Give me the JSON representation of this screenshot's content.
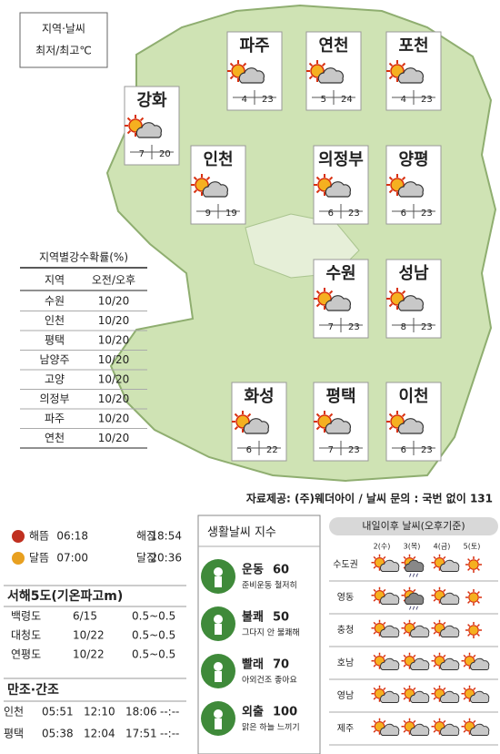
{
  "legend": {
    "line1": "지역·날씨",
    "line2": "최저/최고℃"
  },
  "cities": [
    {
      "name": "파주",
      "low": 4,
      "high": 23
    },
    {
      "name": "연천",
      "low": 5,
      "high": 24
    },
    {
      "name": "포천",
      "low": 4,
      "high": 23
    },
    {
      "name": "강화",
      "low": 7,
      "high": 20
    },
    {
      "name": "인천",
      "low": 9,
      "high": 19
    },
    {
      "name": "의정부",
      "low": 6,
      "high": 23
    },
    {
      "name": "양평",
      "low": 6,
      "high": 23
    },
    {
      "name": "수원",
      "low": 7,
      "high": 23
    },
    {
      "name": "성남",
      "low": 8,
      "high": 23
    },
    {
      "name": "화성",
      "low": 6,
      "high": 22
    },
    {
      "name": "평택",
      "low": 7,
      "high": 23
    },
    {
      "name": "이천",
      "low": 6,
      "high": 23
    }
  ],
  "rain_table": {
    "title": "지역별강수확률(%)",
    "header": [
      "지역",
      "오전/오후"
    ],
    "rows": [
      [
        "수원",
        "10/20"
      ],
      [
        "인천",
        "10/20"
      ],
      [
        "평택",
        "10/20"
      ],
      [
        "남양주",
        "10/20"
      ],
      [
        "고양",
        "10/20"
      ],
      [
        "의정부",
        "10/20"
      ],
      [
        "파주",
        "10/20"
      ],
      [
        "연천",
        "10/20"
      ]
    ]
  },
  "source": "자료제공: (주)웨더아이 / 날씨 문의 : 국번 없이 131",
  "sun_moon": [
    [
      "해뜸",
      "06:18",
      "해짐",
      "18:54"
    ],
    [
      "달뜸",
      "07:00",
      "달짐",
      "20:36"
    ]
  ],
  "sea": {
    "title": "서해5도(기온파고m)",
    "rows": [
      [
        "백령도",
        "6/15",
        "0.5~0.5"
      ],
      [
        "대청도",
        "10/22",
        "0.5~0.5"
      ],
      [
        "연평도",
        "10/22",
        "0.5~0.5"
      ]
    ]
  },
  "tide": {
    "title": "만조·간조",
    "rows": [
      [
        "인천",
        "05:51",
        "12:10",
        "18:06",
        "--:--"
      ],
      [
        "평택",
        "05:38",
        "12:04",
        "17:51",
        "--:--"
      ]
    ]
  },
  "life_index": {
    "title": "생활날씨 지수",
    "items": [
      {
        "name": "운동",
        "value": 60,
        "note": "준비운동 철저히"
      },
      {
        "name": "불쾌",
        "value": 50,
        "note": "그다지 안 불쾌해"
      },
      {
        "name": "빨래",
        "value": 70,
        "note": "아외건조 좋아요"
      },
      {
        "name": "외출",
        "value": 100,
        "note": "맑은 하늘 느끼기"
      }
    ]
  },
  "forecast": {
    "title": "내일이후 날씨(오후기준)",
    "days": [
      "2(수)",
      "3(목)",
      "4(금)",
      "5(토)"
    ],
    "regions": [
      "수도권",
      "영동",
      "충청",
      "호남",
      "영남",
      "제주"
    ]
  }
}
